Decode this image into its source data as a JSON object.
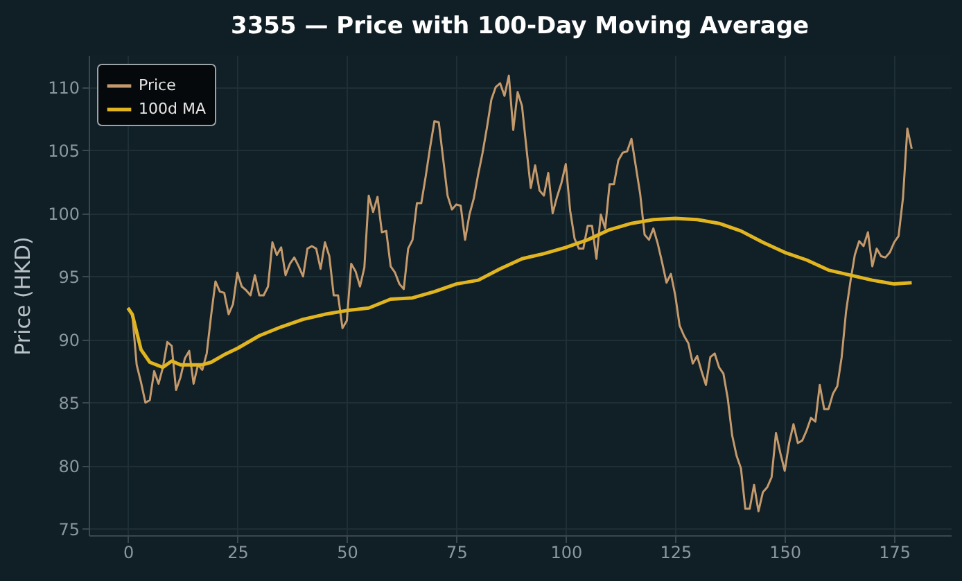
{
  "chart_data": {
    "type": "line",
    "title": "3355 — Price with 100-Day Moving Average",
    "ylabel": "Price (HKD)",
    "x": [
      0,
      1,
      2,
      3,
      4,
      5,
      6,
      7,
      8,
      9,
      10,
      11,
      12,
      13,
      14,
      15,
      16,
      17,
      18,
      19,
      20,
      21,
      22,
      23,
      24,
      25,
      26,
      27,
      28,
      29,
      30,
      31,
      32,
      33,
      34,
      35,
      36,
      37,
      38,
      39,
      40,
      41,
      42,
      43,
      44,
      45,
      46,
      47,
      48,
      49,
      50,
      51,
      52,
      53,
      54,
      55,
      56,
      57,
      58,
      59,
      60,
      61,
      62,
      63,
      64,
      65,
      66,
      67,
      68,
      69,
      70,
      71,
      72,
      73,
      74,
      75,
      76,
      77,
      78,
      79,
      80,
      81,
      82,
      83,
      84,
      85,
      86,
      87,
      88,
      89,
      90,
      91,
      92,
      93,
      94,
      95,
      96,
      97,
      98,
      99,
      100,
      101,
      102,
      103,
      104,
      105,
      106,
      107,
      108,
      109,
      110,
      111,
      112,
      113,
      114,
      115,
      116,
      117,
      118,
      119,
      120,
      121,
      122,
      123,
      124,
      125,
      126,
      127,
      128,
      129,
      130,
      131,
      132,
      133,
      134,
      135,
      136,
      137,
      138,
      139,
      140,
      141,
      142,
      143,
      144,
      145,
      146,
      147,
      148,
      149,
      150,
      151,
      152,
      153,
      154,
      155,
      156,
      157,
      158,
      159,
      160,
      161,
      162,
      163,
      164,
      165,
      166,
      167,
      168,
      169,
      170,
      171,
      172,
      173,
      174,
      175,
      176,
      177,
      178,
      179
    ],
    "series": [
      {
        "name": "Price",
        "color": "#c49a6c",
        "values": [
          92.5,
          92,
          88,
          86.6,
          85,
          85.2,
          87.5,
          86.5,
          87.8,
          89.8,
          89.5,
          86,
          87,
          88.5,
          89.1,
          86.5,
          88,
          87.6,
          88.9,
          91.9,
          94.6,
          93.8,
          93.7,
          92,
          92.8,
          95.3,
          94.2,
          93.9,
          93.5,
          95.1,
          93.5,
          93.5,
          94.2,
          97.7,
          96.7,
          97.3,
          95.1,
          96,
          96.5,
          95.8,
          95,
          97.2,
          97.4,
          97.2,
          95.6,
          97.7,
          96.6,
          93.5,
          93.5,
          90.9,
          91.5,
          96,
          95.4,
          94.2,
          95.7,
          101.4,
          100.1,
          101.3,
          98.5,
          98.6,
          95.8,
          95.3,
          94.4,
          94,
          97.2,
          97.9,
          100.8,
          100.8,
          102.9,
          105.2,
          107.3,
          107.2,
          104.3,
          101.4,
          100.3,
          100.7,
          100.6,
          97.9,
          99.9,
          101.2,
          103.1,
          104.8,
          106.8,
          109,
          110,
          110.3,
          109.3,
          110.9,
          106.6,
          109.6,
          108.5,
          105.2,
          102,
          103.8,
          101.8,
          101.4,
          103.2,
          100,
          101.3,
          102.4,
          103.9,
          100.2,
          98,
          97.2,
          97.2,
          99,
          99,
          96.4,
          99.9,
          98.8,
          102.3,
          102.3,
          104.2,
          104.8,
          104.9,
          105.9,
          103.7,
          101.5,
          98.3,
          97.9,
          98.8,
          97.6,
          96.1,
          94.5,
          95.2,
          93.5,
          91.1,
          90.3,
          89.7,
          88.1,
          88.7,
          87.5,
          86.4,
          88.6,
          88.9,
          87.8,
          87.3,
          85.3,
          82.4,
          80.8,
          79.8,
          76.6,
          76.6,
          78.5,
          76.4,
          77.9,
          78.3,
          79.1,
          82.6,
          81,
          79.6,
          81.8,
          83.3,
          81.8,
          82,
          82.8,
          83.8,
          83.5,
          86.4,
          84.5,
          84.5,
          85.7,
          86.3,
          88.6,
          92.2,
          94.6,
          96.7,
          97.8,
          97.4,
          98.5,
          95.8,
          97.2,
          96.6,
          96.5,
          96.9,
          97.7,
          98.2,
          101.2,
          106.7,
          105.1
        ]
      },
      {
        "name": "100d MA",
        "color": "#e0b520",
        "x": [
          0,
          1,
          2,
          3,
          5,
          8,
          10,
          12,
          15,
          17,
          19,
          22,
          25,
          30,
          35,
          40,
          45,
          50,
          55,
          60,
          65,
          70,
          75,
          80,
          85,
          90,
          95,
          100,
          105,
          110,
          115,
          120,
          125,
          130,
          135,
          140,
          145,
          150,
          155,
          160,
          165,
          170,
          175,
          179
        ],
        "values": [
          92.5,
          92,
          90.6,
          89.2,
          88.2,
          87.8,
          88.3,
          88,
          88,
          88,
          88.2,
          88.8,
          89.3,
          90.3,
          91,
          91.6,
          92,
          92.3,
          92.5,
          93.2,
          93.3,
          93.8,
          94.4,
          94.7,
          95.6,
          96.4,
          96.8,
          97.3,
          97.9,
          98.7,
          99.2,
          99.5,
          99.6,
          99.5,
          99.2,
          98.6,
          97.7,
          96.9,
          96.3,
          95.5,
          95.1,
          94.7,
          94.4,
          94.5
        ]
      }
    ],
    "xlim": [
      -8.95,
      187.95
    ],
    "xticks": [
      0,
      25,
      50,
      75,
      100,
      125,
      150,
      175
    ],
    "ylim": [
      74.5,
      112.5
    ],
    "yticks": [
      75,
      80,
      85,
      90,
      95,
      100,
      105,
      110
    ],
    "grid": true,
    "legend": "top left"
  }
}
